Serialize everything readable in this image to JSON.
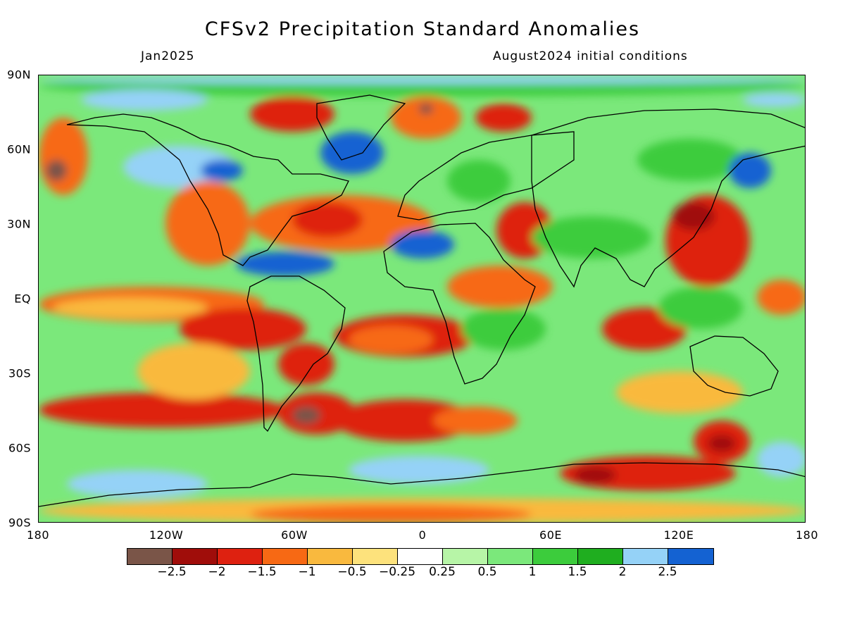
{
  "title": "CFSv2 Precipitation Standard Anomalies",
  "subtitle_left": "Jan2025",
  "subtitle_right": "August2024 initial conditions",
  "y_labels": [
    "90N",
    "60N",
    "30N",
    "EQ",
    "30S",
    "60S",
    "90S"
  ],
  "x_labels": [
    "180",
    "120W",
    "60W",
    "0",
    "60E",
    "120E",
    "180"
  ],
  "colorbar": {
    "colors": [
      "#7a5548",
      "#a00d0a",
      "#de2110",
      "#f76914",
      "#f9b93e",
      "#fde27c",
      "#ffffff",
      "#b7f5a7",
      "#7be87b",
      "#3ccc3c",
      "#1fae1f",
      "#95d2f7",
      "#1462d2"
    ],
    "labels": [
      "−2.5",
      "−2",
      "−1.5",
      "−1",
      "−0.5",
      "−0.25",
      "0.25",
      "0.5",
      "1",
      "1.5",
      "2",
      "2.5"
    ]
  },
  "palette": {
    "strong_dry": "#a00d0a",
    "dry": "#de2110",
    "mod_dry": "#f76914",
    "light_dry": "#f9b93e",
    "neutral": "#ffffff",
    "light_wet": "#b7f5a7",
    "wet": "#3ccc3c",
    "very_wet": "#95d2f7",
    "extreme_wet": "#1462d2",
    "extreme_dry": "#7a5548"
  }
}
